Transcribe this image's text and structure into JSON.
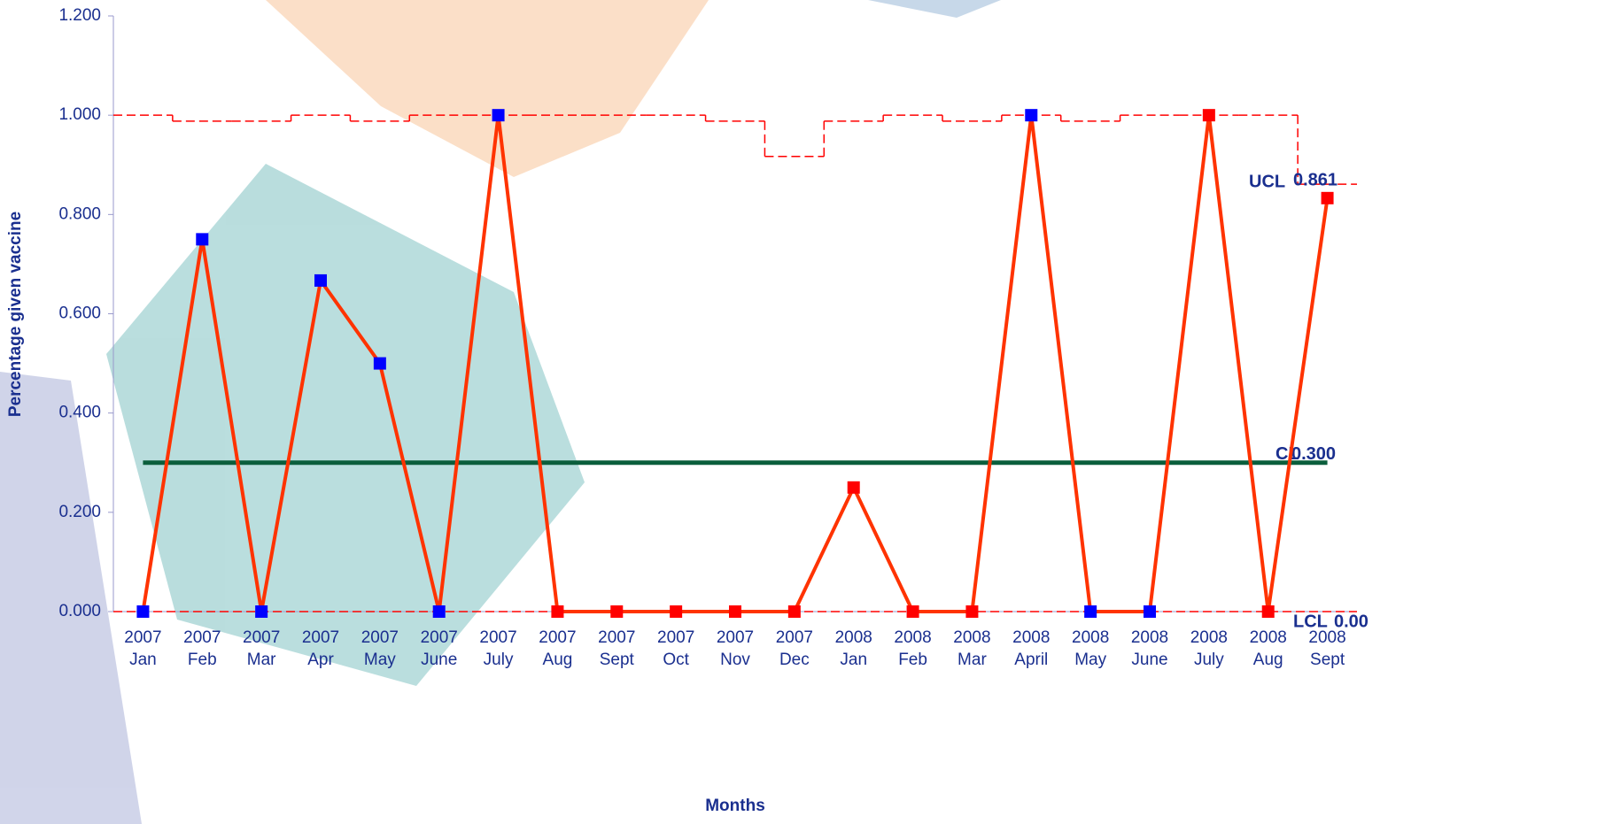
{
  "chart_data": {
    "type": "line",
    "x_label": "Months",
    "y_label": "Percentage given vaccine",
    "categories": [
      [
        "2007",
        "Jan"
      ],
      [
        "2007",
        "Feb"
      ],
      [
        "2007",
        "Mar"
      ],
      [
        "2007",
        "Apr"
      ],
      [
        "2007",
        "May"
      ],
      [
        "2007",
        "June"
      ],
      [
        "2007",
        "July"
      ],
      [
        "2007",
        "Aug"
      ],
      [
        "2007",
        "Sept"
      ],
      [
        "2007",
        "Oct"
      ],
      [
        "2007",
        "Nov"
      ],
      [
        "2007",
        "Dec"
      ],
      [
        "2008",
        "Jan"
      ],
      [
        "2008",
        "Feb"
      ],
      [
        "2008",
        "Mar"
      ],
      [
        "2008",
        "April"
      ],
      [
        "2008",
        "May"
      ],
      [
        "2008",
        "June"
      ],
      [
        "2008",
        "July"
      ],
      [
        "2008",
        "Aug"
      ],
      [
        "2008",
        "Sept"
      ]
    ],
    "series": [
      {
        "color": "#ff3300",
        "values": [
          0,
          0.75,
          0,
          0.667,
          0.5,
          0,
          1,
          0,
          0,
          0,
          0,
          0,
          0.25,
          0,
          0,
          1,
          0,
          0,
          1,
          0,
          0.833
        ],
        "marker_colors": [
          "#0000ff",
          "#0000ff",
          "#0000ff",
          "#0000ff",
          "#0000ff",
          "#0000ff",
          "#0000ff",
          "#ff0000",
          "#ff0000",
          "#ff0000",
          "#ff0000",
          "#ff0000",
          "#ff0000",
          "#ff0000",
          "#ff0000",
          "#0000ff",
          "#0000ff",
          "#0000ff",
          "#ff0000",
          "#ff0000",
          "#ff0000"
        ]
      }
    ],
    "ucl": {
      "name": "UCL",
      "color": "#ff0000",
      "values": [
        1,
        0.988,
        0.988,
        1,
        0.988,
        1,
        1,
        1,
        1,
        1,
        0.988,
        0.917,
        0.988,
        1,
        0.988,
        1,
        0.988,
        1,
        1,
        1,
        0.861
      ],
      "value_label": "0.861"
    },
    "cl": {
      "name": "CL",
      "color": "#0b5e3c",
      "value": 0.3,
      "value_label": "0.300"
    },
    "lcl": {
      "name": "LCL",
      "color": "#ff0000",
      "value": 0,
      "value_label": "0.00"
    },
    "ylim": [
      0,
      1.2
    ],
    "yticks": [
      {
        "value": 0,
        "label": "0.000"
      },
      {
        "value": 0.2,
        "label": "0.200"
      },
      {
        "value": 0.4,
        "label": "0.400"
      },
      {
        "value": 0.6,
        "label": "0.600"
      },
      {
        "value": 0.8,
        "label": "0.800"
      },
      {
        "value": 1,
        "label": "1.000"
      },
      {
        "value": 1.2,
        "label": "1.200"
      }
    ],
    "grid": false
  }
}
